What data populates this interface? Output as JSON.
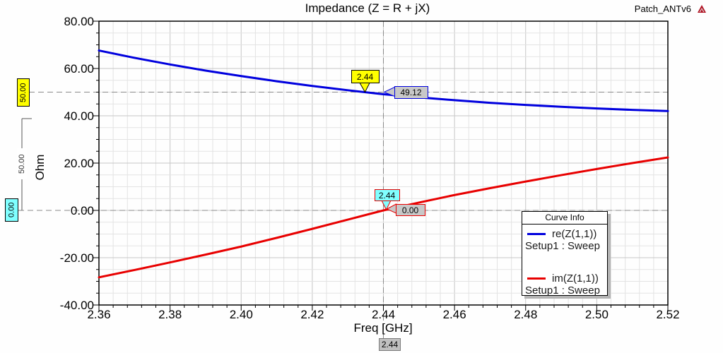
{
  "header": {
    "title": "Impedance (Z = R + jX)",
    "project": "Patch_ANTv6"
  },
  "chart_data": {
    "type": "line",
    "title": "Impedance (Z = R + jX)",
    "xlabel": "Freq [GHz]",
    "ylabel": "Ohm",
    "xlim": [
      2.36,
      2.52
    ],
    "ylim": [
      -40,
      80
    ],
    "grid": true,
    "x_ticks": [
      {
        "value": 2.36,
        "label": "2.36"
      },
      {
        "value": 2.38,
        "label": "2.38"
      },
      {
        "value": 2.4,
        "label": "2.40"
      },
      {
        "value": 2.42,
        "label": "2.42"
      },
      {
        "value": 2.44,
        "label": "2.44"
      },
      {
        "value": 2.46,
        "label": "2.46"
      },
      {
        "value": 2.48,
        "label": "2.48"
      },
      {
        "value": 2.5,
        "label": "2.50"
      },
      {
        "value": 2.52,
        "label": "2.52"
      }
    ],
    "y_ticks": [
      {
        "value": 80,
        "label": "80.00"
      },
      {
        "value": 60,
        "label": "60.00"
      },
      {
        "value": 40,
        "label": "40.00"
      },
      {
        "value": 20,
        "label": "20.00"
      },
      {
        "value": 0,
        "label": "0.00"
      },
      {
        "value": -20,
        "label": "-20.00"
      },
      {
        "value": -40,
        "label": "-40.00"
      }
    ],
    "x": [
      2.36,
      2.37,
      2.38,
      2.39,
      2.4,
      2.41,
      2.42,
      2.43,
      2.44,
      2.45,
      2.46,
      2.47,
      2.48,
      2.49,
      2.5,
      2.51,
      2.52
    ],
    "series": [
      {
        "name": "re(Z(1,1))",
        "setup": "Setup1 : Sweep",
        "color": "#0000de",
        "values": [
          67.6,
          64.5,
          61.7,
          59.1,
          56.8,
          54.6,
          52.6,
          50.8,
          49.12,
          47.8,
          46.6,
          45.5,
          44.6,
          43.8,
          43.1,
          42.5,
          42.0
        ]
      },
      {
        "name": "im(Z(1,1))",
        "setup": "Setup1 : Sweep",
        "color": "#e80000",
        "values": [
          -28.3,
          -25.2,
          -22.0,
          -18.7,
          -15.3,
          -11.6,
          -7.8,
          -3.9,
          0.0,
          3.3,
          6.5,
          9.4,
          12.2,
          14.9,
          17.5,
          20.0,
          22.4
        ]
      }
    ],
    "legend": {
      "title": "Curve Info",
      "position": "inside-bottom-right",
      "entries": [
        {
          "name": "re(Z(1,1))",
          "setup": "Setup1 : Sweep",
          "color": "#0000de"
        },
        {
          "name": "im(Z(1,1))",
          "setup": "Setup1 : Sweep",
          "color": "#e80000"
        }
      ]
    },
    "markers": [
      {
        "series": "re(Z(1,1))",
        "x": 2.44,
        "y": 49.12,
        "x_label": "2.44",
        "value_label": "49.12",
        "tag_fill": "#ffff00",
        "tag_border": "#000000",
        "value_border": "#0000de"
      },
      {
        "series": "im(Z(1,1))",
        "x": 2.44,
        "y": 0.0,
        "x_label": "2.44",
        "value_label": "0.00",
        "tag_fill": "#80ffff",
        "tag_border": "#e80000",
        "value_border": "#e80000"
      }
    ],
    "reference_lines": {
      "horizontal": [
        {
          "value": 50,
          "label": "50.00",
          "box_fill": "#ffff00"
        },
        {
          "value": 0,
          "label": "0.00",
          "box_fill": "#80ffff"
        }
      ],
      "vertical": {
        "value": 2.44,
        "label": "2.44"
      },
      "delta_ruler": {
        "label": "50.00",
        "from": 50,
        "to": 0
      }
    }
  }
}
